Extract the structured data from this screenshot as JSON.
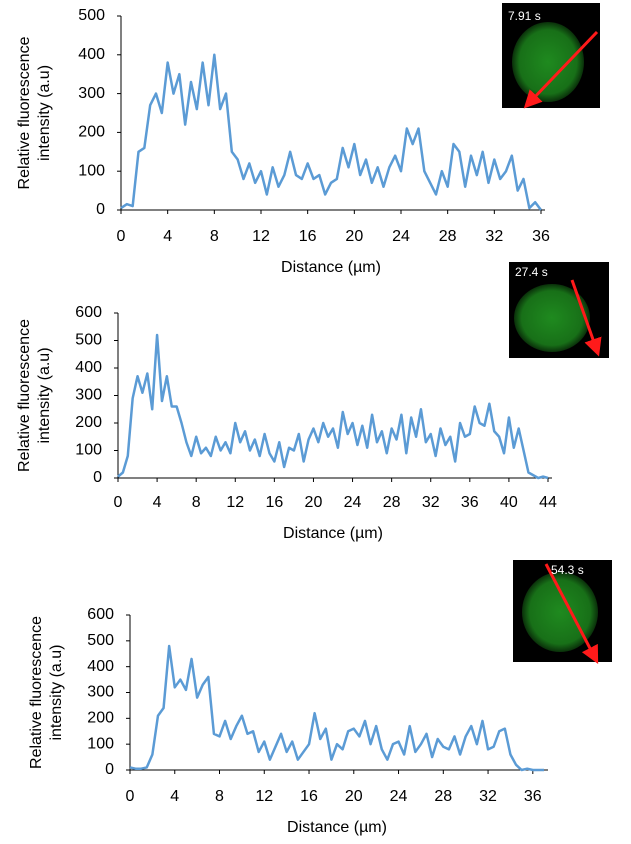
{
  "chart_data": [
    {
      "type": "line",
      "annotation": "7.91 s",
      "xlabel": "Distance (µm)",
      "ylabel": [
        "Relative fluorescence",
        "intensity (a.u)"
      ],
      "xlim": [
        0,
        36
      ],
      "ylim": [
        0,
        500
      ],
      "xticks": [
        0,
        4,
        8,
        12,
        16,
        20,
        24,
        28,
        32,
        36
      ],
      "yticks": [
        0,
        100,
        200,
        300,
        400,
        500
      ],
      "x": [
        0,
        0.5,
        1,
        1.5,
        2,
        2.5,
        3,
        3.5,
        4,
        4.5,
        5,
        5.5,
        6,
        6.5,
        7,
        7.5,
        8,
        8.5,
        9,
        9.5,
        10,
        10.5,
        11,
        11.5,
        12,
        12.5,
        13,
        13.5,
        14,
        14.5,
        15,
        15.5,
        16,
        16.5,
        17,
        17.5,
        18,
        18.5,
        19,
        19.5,
        20,
        20.5,
        21,
        21.5,
        22,
        22.5,
        23,
        23.5,
        24,
        24.5,
        25,
        25.5,
        26,
        26.5,
        27,
        27.5,
        28,
        28.5,
        29,
        29.5,
        30,
        30.5,
        31,
        31.5,
        32,
        32.5,
        33,
        33.5,
        34,
        34.5,
        35,
        35.5,
        36
      ],
      "series": [
        {
          "color": "#5b9bd5",
          "values": [
            5,
            15,
            10,
            150,
            160,
            270,
            300,
            250,
            380,
            300,
            350,
            220,
            330,
            260,
            380,
            270,
            400,
            260,
            300,
            150,
            130,
            80,
            120,
            70,
            100,
            40,
            110,
            60,
            90,
            150,
            90,
            80,
            120,
            80,
            90,
            40,
            70,
            80,
            160,
            110,
            170,
            90,
            130,
            70,
            110,
            60,
            110,
            140,
            100,
            210,
            170,
            210,
            100,
            70,
            40,
            100,
            60,
            170,
            150,
            60,
            140,
            90,
            150,
            70,
            130,
            80,
            100,
            140,
            50,
            80,
            5,
            20,
            0
          ]
        }
      ]
    },
    {
      "type": "line",
      "annotation": "27.4 s",
      "xlabel": "Distance (µm)",
      "ylabel": [
        "Relative fluorescence",
        "intensity (a.u)"
      ],
      "xlim": [
        0,
        44
      ],
      "ylim": [
        0,
        600
      ],
      "xticks": [
        0,
        4,
        8,
        12,
        16,
        20,
        24,
        28,
        32,
        36,
        40,
        44
      ],
      "yticks": [
        0,
        100,
        200,
        300,
        400,
        500,
        600
      ],
      "x": [
        0,
        0.5,
        1,
        1.5,
        2,
        2.5,
        3,
        3.5,
        4,
        4.5,
        5,
        5.5,
        6,
        6.5,
        7,
        7.5,
        8,
        8.5,
        9,
        9.5,
        10,
        10.5,
        11,
        11.5,
        12,
        12.5,
        13,
        13.5,
        14,
        14.5,
        15,
        15.5,
        16,
        16.5,
        17,
        17.5,
        18,
        18.5,
        19,
        19.5,
        20,
        20.5,
        21,
        21.5,
        22,
        22.5,
        23,
        23.5,
        24,
        24.5,
        25,
        25.5,
        26,
        26.5,
        27,
        27.5,
        28,
        28.5,
        29,
        29.5,
        30,
        30.5,
        31,
        31.5,
        32,
        32.5,
        33,
        33.5,
        34,
        34.5,
        35,
        35.5,
        36,
        36.5,
        37,
        37.5,
        38,
        38.5,
        39,
        39.5,
        40,
        40.5,
        41,
        41.5,
        42,
        42.5,
        43,
        43.5,
        44
      ],
      "series": [
        {
          "color": "#5b9bd5",
          "values": [
            5,
            20,
            80,
            290,
            370,
            310,
            380,
            250,
            520,
            280,
            370,
            260,
            260,
            200,
            130,
            80,
            150,
            90,
            110,
            80,
            150,
            100,
            130,
            90,
            200,
            130,
            170,
            100,
            140,
            80,
            160,
            90,
            60,
            130,
            40,
            110,
            100,
            160,
            60,
            140,
            180,
            130,
            200,
            150,
            180,
            110,
            240,
            160,
            200,
            120,
            190,
            110,
            230,
            130,
            170,
            90,
            180,
            140,
            230,
            90,
            220,
            150,
            250,
            130,
            160,
            80,
            180,
            120,
            150,
            60,
            200,
            150,
            160,
            260,
            200,
            190,
            270,
            170,
            150,
            90,
            220,
            110,
            180,
            100,
            20,
            10,
            0,
            5,
            0
          ]
        }
      ]
    },
    {
      "type": "line",
      "annotation": "54.3 s",
      "xlabel": "Distance (µm)",
      "ylabel": [
        "Relative fluorescence",
        "intensity (a.u)"
      ],
      "xlim": [
        0,
        37
      ],
      "ylim": [
        0,
        600
      ],
      "xticks": [
        0,
        4,
        8,
        12,
        16,
        20,
        24,
        28,
        32,
        36
      ],
      "yticks": [
        0,
        100,
        200,
        300,
        400,
        500,
        600
      ],
      "x": [
        0,
        0.5,
        1,
        1.5,
        2,
        2.5,
        3,
        3.5,
        4,
        4.5,
        5,
        5.5,
        6,
        6.5,
        7,
        7.5,
        8,
        8.5,
        9,
        9.5,
        10,
        10.5,
        11,
        11.5,
        12,
        12.5,
        13,
        13.5,
        14,
        14.5,
        15,
        15.5,
        16,
        16.5,
        17,
        17.5,
        18,
        18.5,
        19,
        19.5,
        20,
        20.5,
        21,
        21.5,
        22,
        22.5,
        23,
        23.5,
        24,
        24.5,
        25,
        25.5,
        26,
        26.5,
        27,
        27.5,
        28,
        28.5,
        29,
        29.5,
        30,
        30.5,
        31,
        31.5,
        32,
        32.5,
        33,
        33.5,
        34,
        34.5,
        35,
        35.5,
        36,
        36.5,
        37
      ],
      "series": [
        {
          "color": "#5b9bd5",
          "values": [
            10,
            5,
            5,
            10,
            60,
            210,
            240,
            480,
            320,
            350,
            310,
            430,
            280,
            330,
            360,
            140,
            130,
            190,
            120,
            170,
            210,
            140,
            150,
            70,
            110,
            40,
            90,
            140,
            70,
            110,
            40,
            70,
            100,
            220,
            120,
            160,
            40,
            100,
            80,
            150,
            160,
            130,
            190,
            100,
            170,
            80,
            40,
            100,
            110,
            60,
            170,
            70,
            100,
            140,
            50,
            120,
            90,
            80,
            130,
            60,
            130,
            170,
            100,
            190,
            80,
            90,
            150,
            160,
            60,
            20,
            0,
            5,
            0,
            0,
            0
          ]
        }
      ]
    }
  ]
}
